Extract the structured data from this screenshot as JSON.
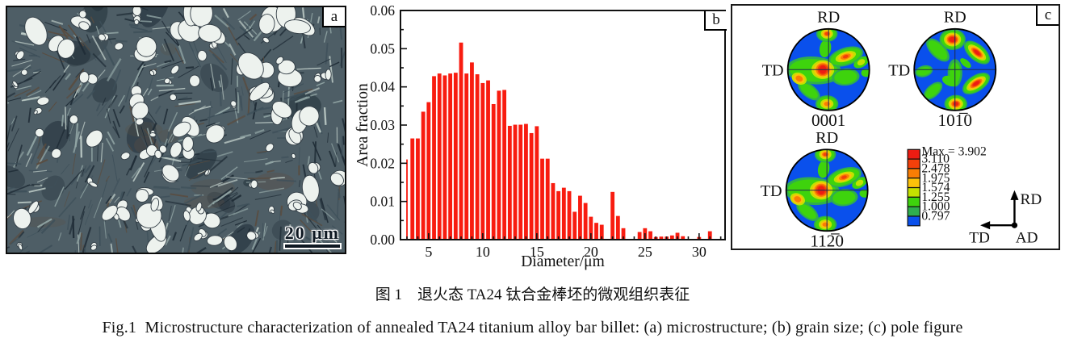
{
  "captions": {
    "zh": "图 1　退火态 TA24 钛合金棒坯的微观组织表征",
    "en": "Fig.1  Microstructure characterization of annealed TA24 titanium alloy bar billet: (a) microstructure; (b) grain size; (c) pole figure"
  },
  "panel_a": {
    "label": "a",
    "scale_bar": "20 μm"
  },
  "panel_b": {
    "label": "b"
  },
  "chart_data": {
    "type": "bar",
    "title": "",
    "xlabel": "Diameter/μm",
    "ylabel": "Area fraction",
    "xlim": [
      2.4,
      32.4
    ],
    "ylim": [
      0,
      0.06
    ],
    "xticks_major": [
      5,
      10,
      15,
      20,
      25,
      30
    ],
    "xtick_minor_step": 1,
    "yticks_major": [
      0,
      0.01,
      0.02,
      0.03,
      0.04,
      0.05,
      0.06
    ],
    "ytick_minor_step": 0.005,
    "bar_color": "#f81c10",
    "bin_width": 0.5,
    "grid": false,
    "x": [
      3,
      3.5,
      4,
      4.5,
      5,
      5.5,
      6,
      6.5,
      7,
      7.5,
      8,
      8.5,
      9,
      9.5,
      10,
      10.5,
      11,
      11.5,
      12,
      12.5,
      13,
      13.5,
      14,
      14.5,
      15,
      15.5,
      16,
      16.5,
      17,
      17.5,
      18,
      18.5,
      19,
      19.5,
      20,
      20.5,
      21,
      21.5,
      22,
      22.5,
      23,
      23.5,
      24,
      24.5,
      25,
      25.5,
      26,
      26.5,
      27,
      27.5,
      28,
      28.5,
      29,
      29.5,
      30,
      30.5,
      31
    ],
    "values": [
      0.021,
      0.0265,
      0.0265,
      0.0335,
      0.036,
      0.0428,
      0.0435,
      0.043,
      0.0435,
      0.0437,
      0.0516,
      0.0435,
      0.0464,
      0.0433,
      0.041,
      0.0417,
      0.0355,
      0.039,
      0.0392,
      0.0298,
      0.0301,
      0.0301,
      0.0303,
      0.0279,
      0.0297,
      0.0212,
      0.0212,
      0.0148,
      0.0127,
      0.0136,
      0.0127,
      0.0073,
      0.0115,
      0.0096,
      0.006,
      0.0044,
      0.0039,
      0,
      0.0125,
      0.0062,
      0.003,
      0,
      0,
      0.002,
      0.003,
      0.0022,
      0.0007,
      0.0008,
      0.0008,
      0.0011,
      0.0018,
      0.0009,
      0,
      0,
      0.0007,
      0,
      0.0022
    ]
  },
  "panel_c": {
    "label": "c",
    "pole_figures": [
      {
        "plane": "0001",
        "top": "RD",
        "left": "TD",
        "pattern": "basal"
      },
      {
        "plane": "101̅0",
        "top": "RD",
        "left": "TD",
        "pattern": "prismatic"
      },
      {
        "plane": "112̅0",
        "top": "RD",
        "left": "TD",
        "pattern": "basal"
      }
    ],
    "legend": {
      "max_label": "Max = 3.902",
      "levels": [
        "3.110",
        "2.478",
        "1.975",
        "1.574",
        "1.255",
        "1.000",
        "0.797"
      ],
      "colors": [
        "#ed1c12",
        "#f3400a",
        "#f97d04",
        "#fcc10a",
        "#c4e100",
        "#3ed30d",
        "#2fae4e",
        "#0a50ec"
      ]
    },
    "triad": {
      "up": "RD",
      "left": "TD",
      "origin": "AD"
    }
  }
}
